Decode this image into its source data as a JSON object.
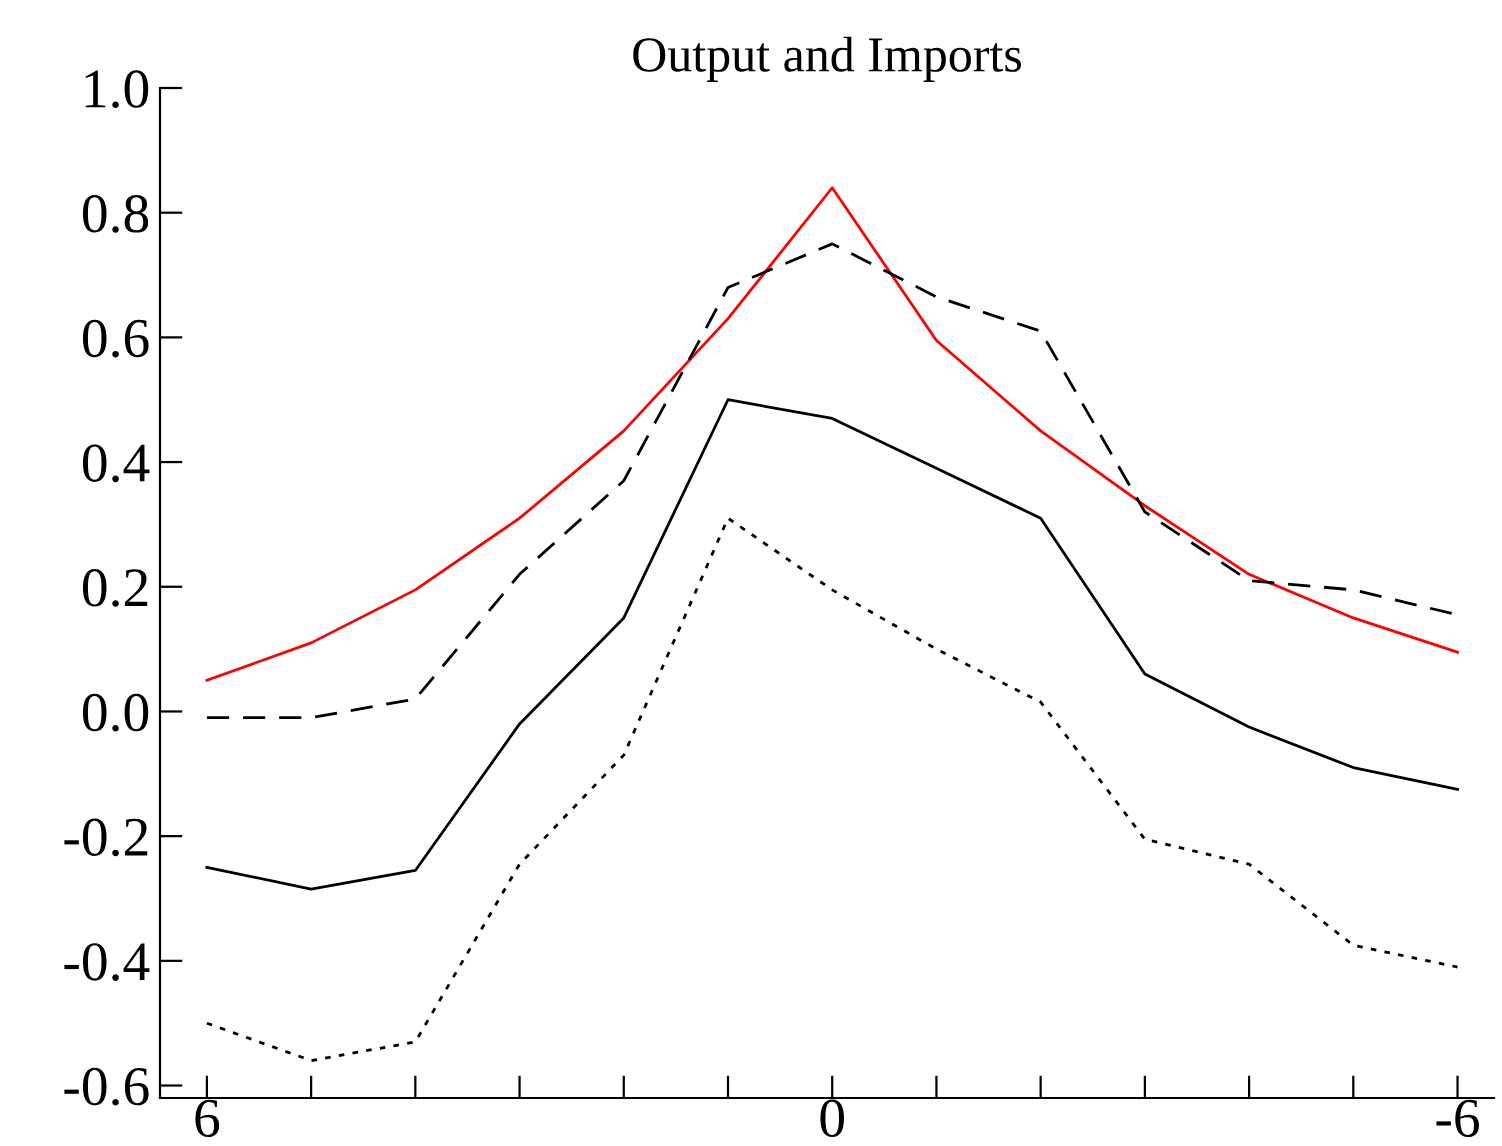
{
  "chart_data": {
    "type": "line",
    "title": "Output and Imports",
    "x": [
      6,
      5,
      4,
      3,
      2,
      1,
      0,
      -1,
      -2,
      -3,
      -4,
      -5,
      -6
    ],
    "series": [
      {
        "color": "#ff0000",
        "line_style": "solid",
        "values": [
          0.05,
          0.11,
          0.195,
          0.31,
          0.45,
          0.63,
          0.84,
          0.595,
          0.45,
          0.33,
          0.22,
          0.15,
          0.095
        ]
      },
      {
        "color": "#000000",
        "line_style": "dashed",
        "values": [
          -0.01,
          -0.01,
          0.02,
          0.22,
          0.37,
          0.68,
          0.75,
          0.665,
          0.61,
          0.32,
          0.21,
          0.195,
          0.155
        ]
      },
      {
        "color": "#000000",
        "line_style": "solid",
        "values": [
          -0.25,
          -0.285,
          -0.255,
          -0.02,
          0.15,
          0.5,
          0.47,
          0.39,
          0.31,
          0.06,
          -0.025,
          -0.09,
          -0.125
        ]
      },
      {
        "color": "#000000",
        "line_style": "dotted",
        "values": [
          -0.5,
          -0.56,
          -0.53,
          -0.245,
          -0.07,
          0.31,
          0.195,
          0.1,
          0.015,
          -0.205,
          -0.245,
          -0.375,
          -0.41
        ]
      }
    ],
    "xlim": [
      6.45,
      -6.35
    ],
    "xticks": [
      6,
      {
        "value": 5,
        "label": null
      },
      {
        "value": 4,
        "label": null
      },
      {
        "value": 3,
        "label": null
      },
      {
        "value": 2,
        "label": null
      },
      {
        "value": 1,
        "label": null
      },
      0,
      {
        "value": -1,
        "label": null
      },
      {
        "value": -2,
        "label": null
      },
      {
        "value": -3,
        "label": null
      },
      {
        "value": -4,
        "label": null
      },
      {
        "value": -5,
        "label": null
      },
      -6
    ],
    "ylim": [
      -0.62,
      1.0
    ],
    "yticks": [
      {
        "value": -0.6,
        "label": "-0.6"
      },
      {
        "value": -0.4,
        "label": "-0.4"
      },
      {
        "value": -0.2,
        "label": "-0.2"
      },
      {
        "value": 0,
        "label": "0.0"
      },
      {
        "value": 0.2,
        "label": "0.2"
      },
      {
        "value": 0.4,
        "label": "0.4"
      },
      {
        "value": 0.6,
        "label": "0.6"
      },
      {
        "value": 0.8,
        "label": "0.8"
      },
      {
        "value": 1.0,
        "label": "1.0"
      }
    ],
    "grid": false,
    "legend": false,
    "marker": "none"
  }
}
